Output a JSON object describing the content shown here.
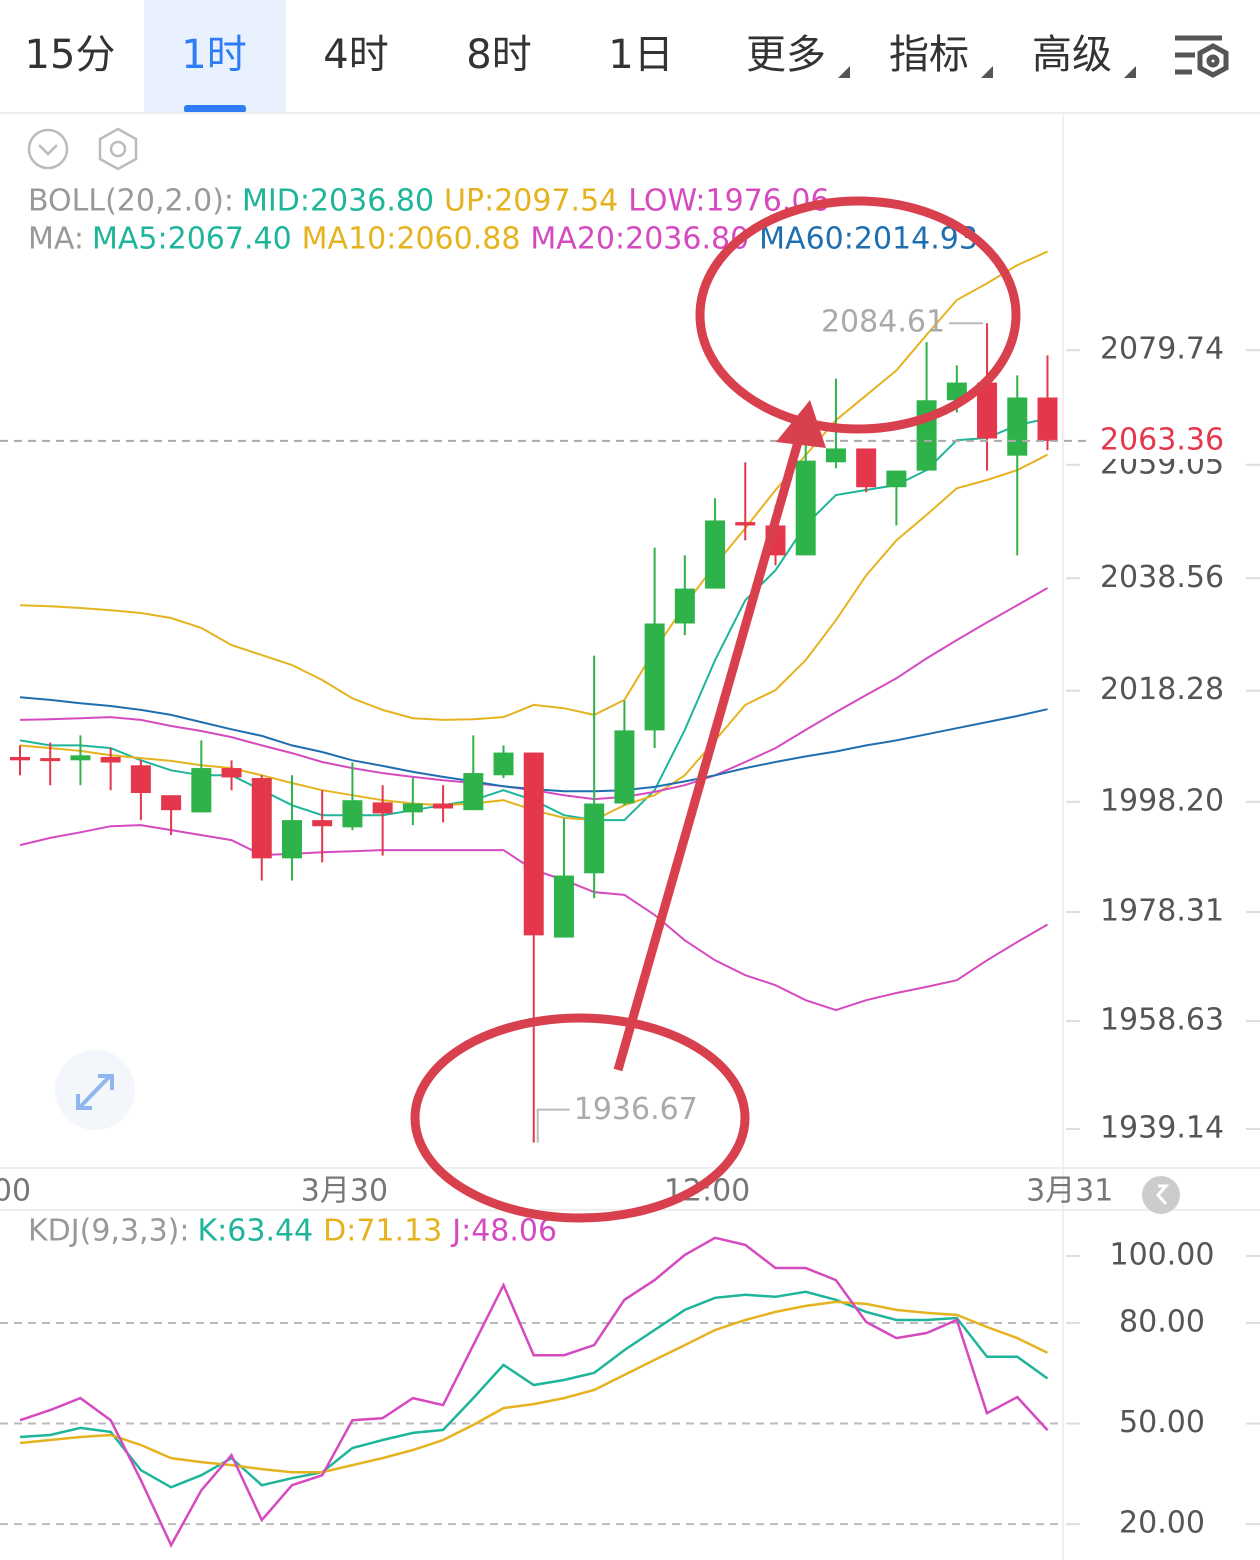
{
  "tabs": [
    "15分",
    "1时",
    "4时",
    "8时",
    "1日",
    "更多",
    "指标",
    "高级"
  ],
  "chart_data": [
    {
      "type": "candlestick",
      "categories": [
        "00",
        null,
        null,
        null,
        null,
        null,
        null,
        null,
        null,
        null,
        null,
        "3月30",
        null,
        null,
        null,
        null,
        null,
        null,
        null,
        null,
        null,
        null,
        null,
        "12:00",
        null,
        null,
        null,
        null,
        null,
        null,
        null,
        null,
        null,
        null,
        null,
        "3月31"
      ],
      "open": [
        2006.3,
        2006.1,
        2005.7,
        2006.3,
        2004.8,
        1999.4,
        1996.3,
        2004.3,
        2002.5,
        1988.0,
        1994.9,
        1993.6,
        1998.1,
        1996.3,
        1997.9,
        1996.7,
        2003.0,
        2007.1,
        1973.7,
        1985.3,
        1997.9,
        2011.1,
        2030.4,
        2036.7,
        2048.7,
        2048.1,
        2042.7,
        2059.5,
        2062.0,
        2055.0,
        2058.0,
        2070.7,
        2073.9,
        2060.7,
        2071.2,
        null
      ],
      "close": [
        2005.7,
        2005.7,
        2006.6,
        2005.3,
        1999.8,
        1996.7,
        2004.3,
        2002.6,
        1988.0,
        1994.9,
        1993.8,
        1998.5,
        1996.1,
        1997.9,
        1997.0,
        2003.4,
        2007.1,
        1974.1,
        1984.9,
        1997.9,
        2011.1,
        2030.4,
        2036.7,
        2049.0,
        2048.1,
        2042.7,
        2059.8,
        2062.0,
        2055.0,
        2058.0,
        2070.7,
        2073.9,
        2063.8,
        2071.2,
        2063.36,
        null
      ],
      "high": [
        2008.4,
        2008.9,
        2010.2,
        2007.9,
        2005.7,
        1999.4,
        2009.3,
        2005.7,
        2003.0,
        2003.0,
        2000.3,
        2005.3,
        2001.2,
        2002.5,
        2001.2,
        2010.2,
        2008.4,
        2007.1,
        1995.2,
        2024.6,
        2016.5,
        2044.1,
        2042.7,
        2053.0,
        2059.5,
        2051.7,
        2063.5,
        2074.6,
        2062.0,
        2058.0,
        2081.2,
        2077.0,
        2084.61,
        2075.2,
        2078.8,
        null
      ],
      "low": [
        2003.0,
        2001.2,
        2001.2,
        2000.3,
        1994.9,
        1992.2,
        1996.3,
        2000.3,
        1984.0,
        1984.0,
        1987.3,
        1993.1,
        1988.5,
        1994.0,
        1994.5,
        1996.7,
        2002.5,
        1936.67,
        1973.7,
        1980.8,
        1997.6,
        2007.9,
        2028.3,
        2036.7,
        2045.4,
        2040.9,
        2042.7,
        2058.4,
        2054.1,
        2048.1,
        2058.0,
        2068.5,
        2058.0,
        2042.7,
        2061.7,
        null
      ],
      "up_color": "#2db34a",
      "down_color": "#e5374b",
      "ylim": [
        1932.1,
        2122.2
      ],
      "yticks": [
        2079.74,
        2059.05,
        2038.56,
        2018.28,
        {
          "value": 1998.2,
          "label": "1998.20"
        },
        1978.31,
        1958.63,
        1939.14
      ],
      "legend_titles": [
        "BOLL(20,2.0):",
        "MA:"
      ],
      "series": [
        {
          "label": "MID:2036.80",
          "color": "#1fb59a",
          "legend": 0
        },
        {
          "label": "UP:2097.54",
          "color": "#e6b320",
          "legend": 0,
          "values": [
            2033.7,
            2033.5,
            2033.2,
            2032.8,
            2032.3,
            2031.4,
            2029.6,
            2026.5,
            2024.7,
            2022.9,
            2020.2,
            2016.9,
            2014.8,
            2013.3,
            2013.0,
            2013.1,
            2013.5,
            2015.7,
            2015.1,
            2013.9,
            2016.6,
            2025.6,
            2033.7,
            2041.0,
            2047.6,
            2054.5,
            2060.8,
            2067.1,
            2071.6,
            2076.1,
            2082.5,
            2088.8,
            2091.8,
            2095.1,
            2097.54,
            null
          ]
        },
        {
          "label": "LOW:1976.06",
          "color": "#d64ac0",
          "legend": 0,
          "values": [
            1990.4,
            1991.7,
            1992.7,
            1993.8,
            1994.0,
            1993.1,
            1992.2,
            1991.3,
            1988.6,
            1988.8,
            1989.1,
            1989.3,
            1989.5,
            1989.5,
            1989.5,
            1989.5,
            1989.5,
            1985.9,
            1984.1,
            1981.9,
            1981.4,
            1977.8,
            1973.2,
            1969.6,
            1966.9,
            1965.1,
            1962.4,
            1960.6,
            1962.4,
            1963.7,
            1964.8,
            1966.0,
            1969.6,
            1972.9,
            1976.06,
            null
          ]
        },
        {
          "label": "MA5:2067.40",
          "color": "#1fb59a",
          "legend": 1,
          "values": [
            2009.3,
            2008.4,
            2008.4,
            2007.9,
            2005.7,
            2003.9,
            2003.0,
            2003.0,
            2000.3,
            1997.6,
            1995.8,
            1995.8,
            1995.8,
            1996.7,
            1997.6,
            1998.5,
            2000.3,
            1998.5,
            1995.8,
            1994.9,
            1994.9,
            2000.3,
            2011.2,
            2023.8,
            2034.6,
            2040.0,
            2048.2,
            2053.6,
            2054.5,
            2055.4,
            2058.1,
            2063.5,
            2063.9,
            2066.2,
            2067.4,
            null
          ]
        },
        {
          "label": "MA10:2060.88",
          "color": "#e6b320",
          "legend": 1,
          "values": [
            2008.4,
            2007.9,
            2007.4,
            2006.6,
            2006.1,
            2005.6,
            2004.8,
            2004.3,
            2003.0,
            2001.6,
            2000.3,
            1999.4,
            1998.5,
            1997.9,
            1997.6,
            1997.9,
            1998.5,
            1996.7,
            1995.3,
            1994.9,
            1997.6,
            1999.4,
            2003.0,
            2009.3,
            2015.7,
            2018.4,
            2023.8,
            2031.0,
            2039.1,
            2045.4,
            2050.0,
            2054.8,
            2056.3,
            2058.1,
            2060.88,
            null
          ]
        },
        {
          "label": "MA20:2036.80",
          "color": "#d64ac0",
          "legend": 1,
          "values": [
            2013.0,
            2013.1,
            2013.3,
            2013.5,
            2013.0,
            2011.9,
            2011.0,
            2009.9,
            2008.4,
            2007.0,
            2005.4,
            2004.3,
            2003.4,
            2002.7,
            2002.1,
            2001.6,
            2001.0,
            2000.3,
            1999.4,
            1998.7,
            1999.1,
            2000.0,
            2001.2,
            2003.0,
            2005.4,
            2007.9,
            2011.2,
            2014.4,
            2017.5,
            2020.5,
            2024.1,
            2027.4,
            2030.6,
            2033.7,
            2036.8,
            null
          ]
        },
        {
          "label": "MA60:2014.93",
          "color": "#1f6fb0",
          "legend": 1,
          "values": [
            2017.1,
            2016.6,
            2016.0,
            2015.5,
            2014.8,
            2013.9,
            2012.6,
            2011.3,
            2010.1,
            2008.4,
            2007.2,
            2005.7,
            2004.7,
            2003.6,
            2002.7,
            2001.9,
            2001.0,
            2000.5,
            2000.1,
            2000.1,
            2000.3,
            2000.9,
            2001.9,
            2003.0,
            2004.3,
            2005.4,
            2006.4,
            2007.3,
            2008.4,
            2009.3,
            2010.4,
            2011.5,
            2012.6,
            2013.7,
            2014.93,
            null
          ]
        }
      ]
    },
    {
      "type": "line",
      "legend_title": "KDJ(9,3,3):",
      "ylim": [
        9.3,
        113.7
      ],
      "yticks": [
        {
          "value": 100,
          "label": "100.00"
        },
        {
          "value": 80,
          "label": "80.00",
          "grid": true
        },
        {
          "value": 50,
          "label": "50.00",
          "grid": true
        },
        {
          "value": 20,
          "label": "20.00",
          "grid": true
        }
      ],
      "series": [
        {
          "label": "K:63.44",
          "color": "#1fb59a",
          "values": [
            46.0,
            46.6,
            48.7,
            47.5,
            36.1,
            31.0,
            34.6,
            39.7,
            31.6,
            33.7,
            35.5,
            42.7,
            45.1,
            47.2,
            48.1,
            57.6,
            67.5,
            61.5,
            63.0,
            65.1,
            71.9,
            77.9,
            83.9,
            87.5,
            88.4,
            87.8,
            89.3,
            86.9,
            83.3,
            80.9,
            80.9,
            81.5,
            69.9,
            69.9,
            63.44
          ]
        },
        {
          "label": "D:71.13",
          "color": "#e6b320",
          "values": [
            44.2,
            45.1,
            46.0,
            46.6,
            43.6,
            39.7,
            38.5,
            37.6,
            36.4,
            35.5,
            35.5,
            37.6,
            39.7,
            42.1,
            45.1,
            49.6,
            54.6,
            55.8,
            57.6,
            60.0,
            64.5,
            69.0,
            73.4,
            77.9,
            80.9,
            83.3,
            85.1,
            86.3,
            85.7,
            83.9,
            83.0,
            82.4,
            78.8,
            75.5,
            71.13
          ]
        },
        {
          "label": "J:48.06",
          "color": "#d64ac0",
          "values": [
            51.0,
            54.0,
            57.6,
            51.0,
            33.1,
            13.7,
            30.1,
            40.6,
            21.2,
            31.6,
            34.6,
            51.0,
            51.6,
            57.6,
            55.5,
            73.4,
            91.3,
            70.4,
            70.4,
            73.4,
            86.9,
            92.8,
            100.3,
            105.4,
            103.3,
            96.4,
            96.4,
            92.8,
            80.3,
            75.5,
            77.0,
            80.9,
            53.1,
            57.9,
            48.06
          ]
        }
      ]
    }
  ]
}
